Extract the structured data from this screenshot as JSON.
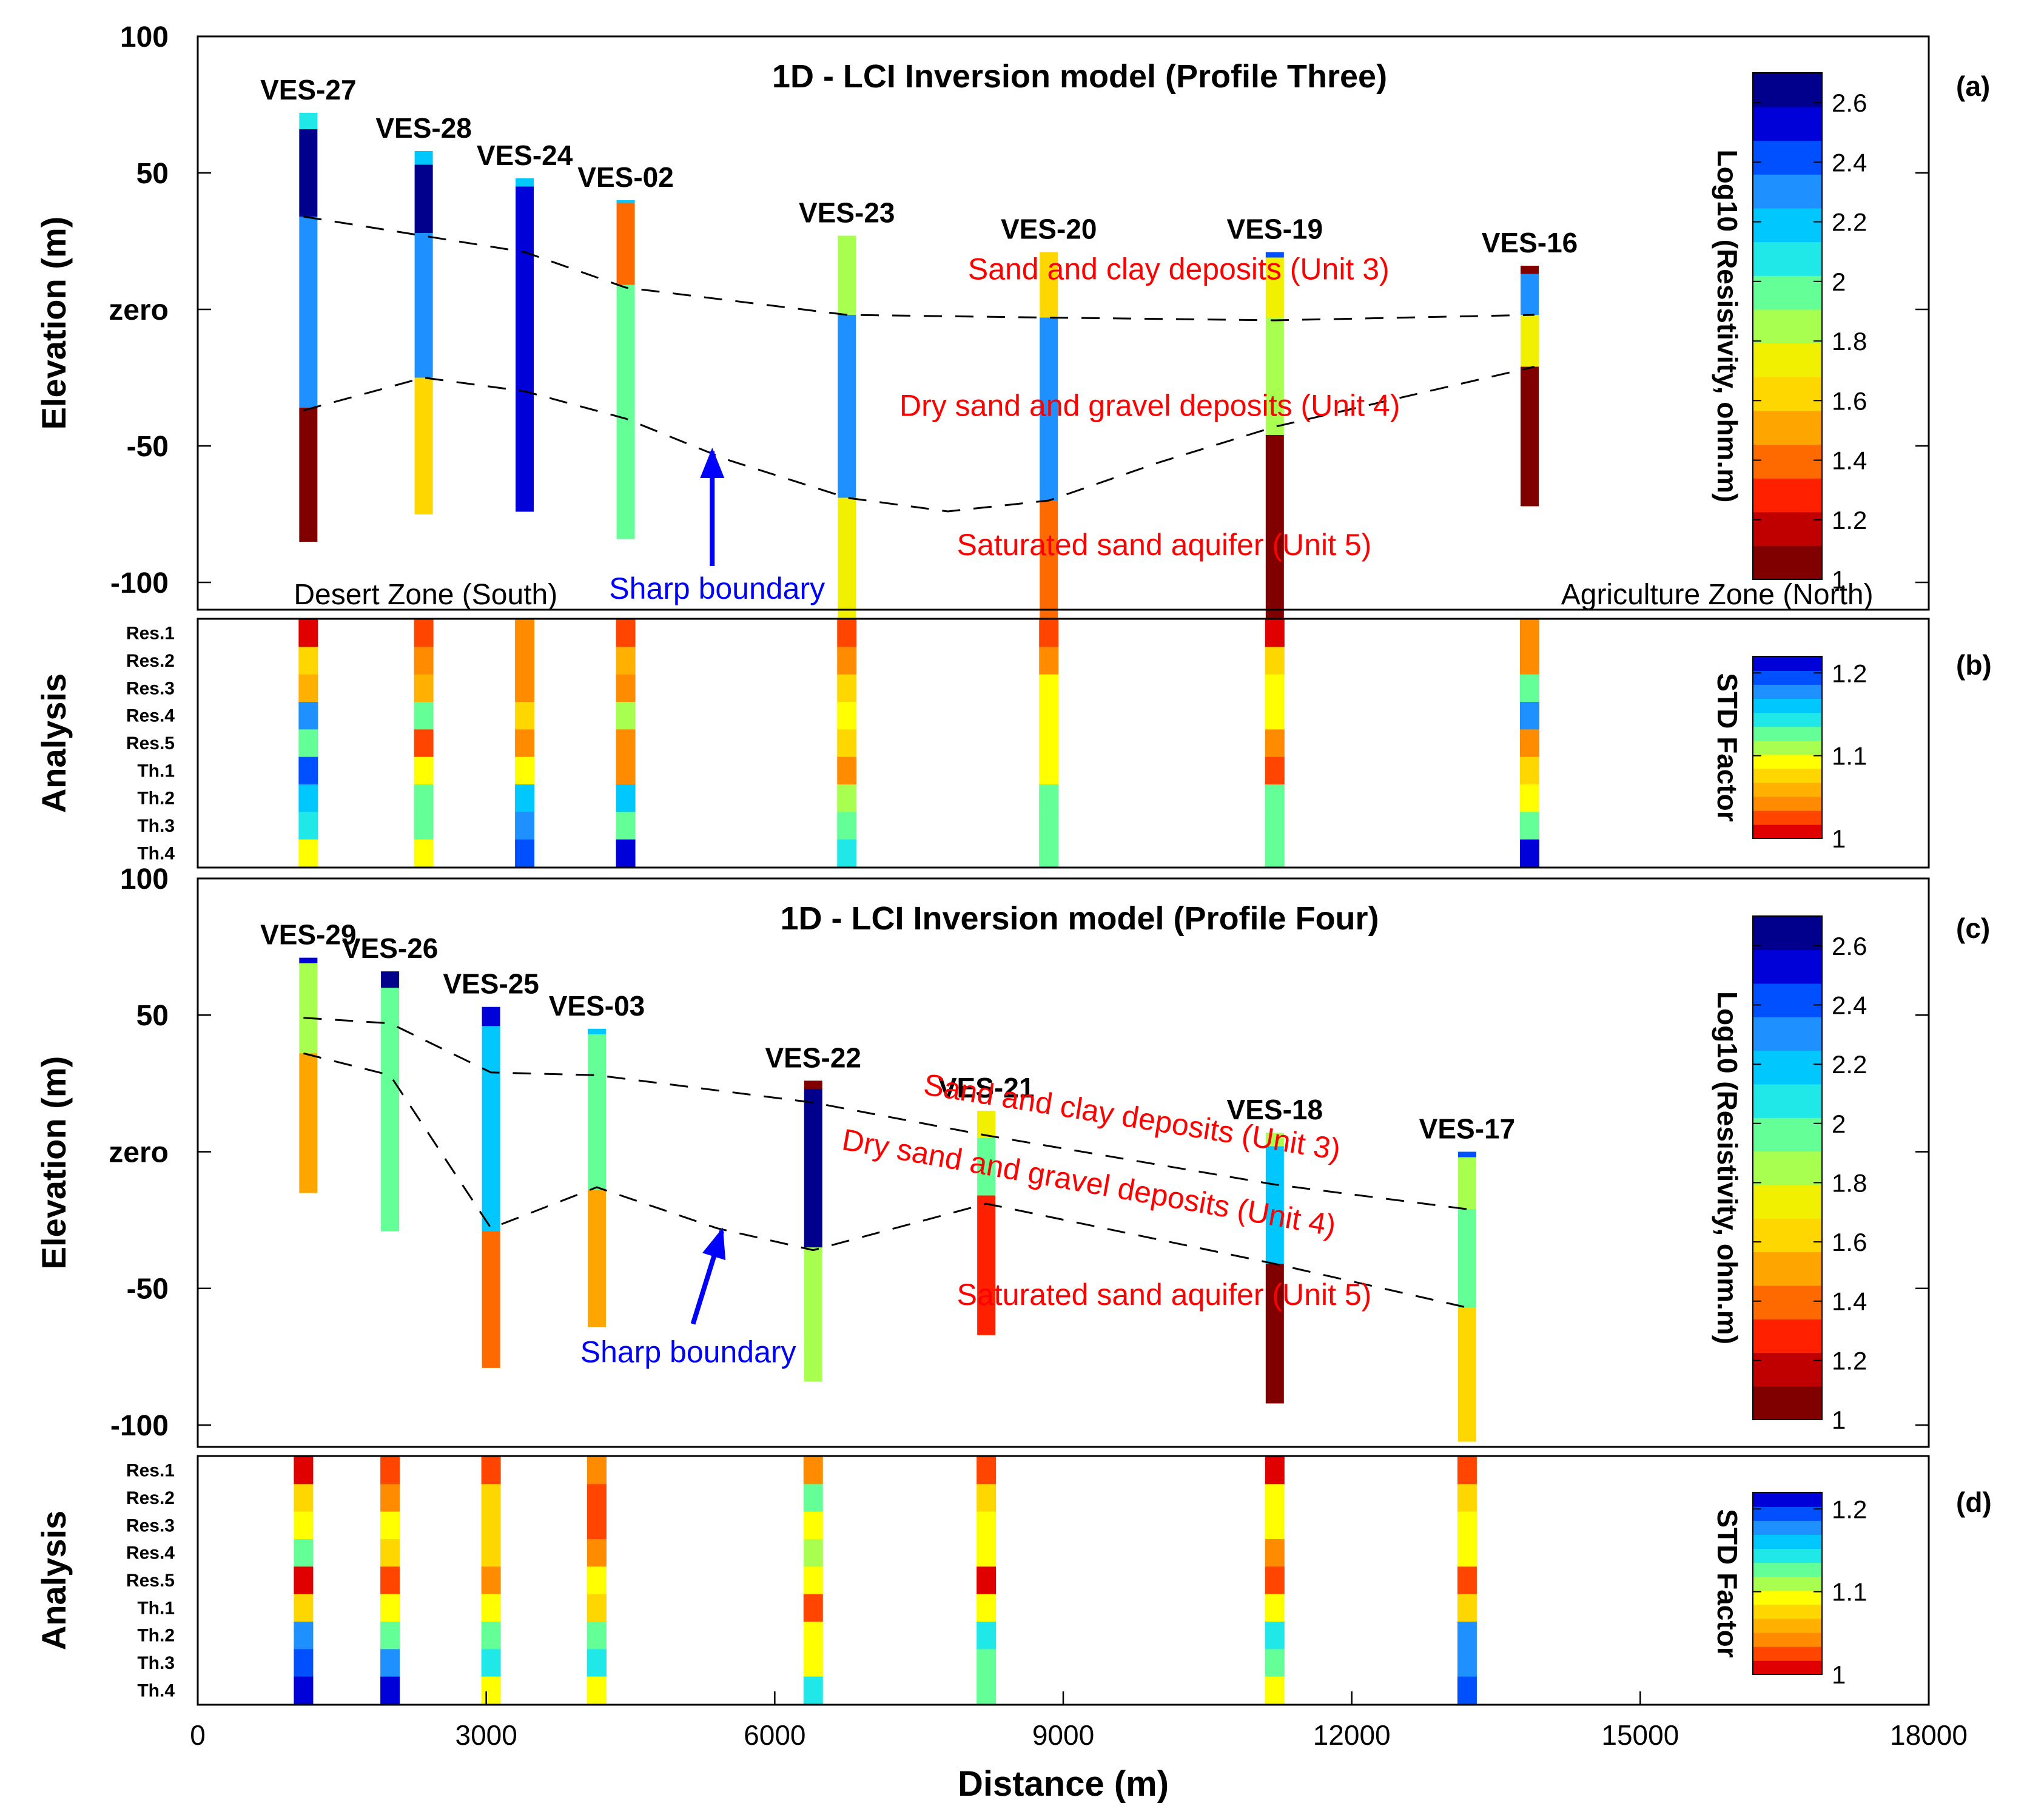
{
  "colors": {
    "jet": [
      "#800000",
      "#c00000",
      "#ff2000",
      "#ff6a00",
      "#ffa500",
      "#ffd700",
      "#f0f000",
      "#a8ff50",
      "#64ff96",
      "#20e8e8",
      "#00c8ff",
      "#1e90ff",
      "#0050ff",
      "#0000d8",
      "#00008c"
    ],
    "std": [
      "#e00000",
      "#ff4500",
      "#ff8c00",
      "#ffb000",
      "#ffd700",
      "#ffff00",
      "#a8ff50",
      "#64ff96",
      "#20e8e8",
      "#00c8ff",
      "#1e90ff",
      "#0050ff",
      "#0000d8"
    ],
    "label_red": "#ff0000",
    "label_blue": "#0000ff",
    "dash": "#000000"
  },
  "chart_data": [
    {
      "panel": "(a)",
      "type": "resistivity-section",
      "title": "1D - LCI Inversion model (Profile Three)",
      "ylabel": "Elevation (m)",
      "xlim": [
        0,
        18000
      ],
      "ylim": [
        -110,
        100
      ],
      "yticks": [
        {
          "v": 100,
          "t": "100"
        },
        {
          "v": 50,
          "t": "50"
        },
        {
          "v": 0,
          "t": "zero"
        },
        {
          "v": -50,
          "t": "-50"
        },
        {
          "v": -100,
          "t": "-100"
        }
      ],
      "colorbar": {
        "label": "Log10 (Resistivity, ohm.m)",
        "range": [
          1,
          2.7
        ],
        "ticks": [
          "2.6",
          "2.4",
          "2.2",
          "2",
          "1.8",
          "1.6",
          "1.4",
          "1.2",
          "1"
        ]
      },
      "soundings": [
        {
          "name": "VES-27",
          "x": 1150,
          "layers": [
            {
              "top": 72,
              "r": 2.1
            },
            {
              "top": 66,
              "r": 2.65
            },
            {
              "top": 34,
              "r": 2.35
            },
            {
              "top": -36,
              "r": 1.05
            }
          ],
          "bottom": -85
        },
        {
          "name": "VES-28",
          "x": 2350,
          "layers": [
            {
              "top": 58,
              "r": 2.2
            },
            {
              "top": 53,
              "r": 2.6
            },
            {
              "top": 28,
              "r": 2.35
            },
            {
              "top": -25,
              "r": 1.65
            }
          ],
          "bottom": -75
        },
        {
          "name": "VES-24",
          "x": 3400,
          "layers": [
            {
              "top": 48,
              "r": 2.2
            },
            {
              "top": 45,
              "r": 2.5
            }
          ],
          "bottom": -74
        },
        {
          "name": "VES-02",
          "x": 4450,
          "layers": [
            {
              "top": 40,
              "r": 2.2
            },
            {
              "top": 39,
              "r": 1.45
            },
            {
              "top": 9,
              "r": 1.95
            }
          ],
          "bottom": -84
        },
        {
          "name": "VES-23",
          "x": 6750,
          "layers": [
            {
              "top": 27,
              "r": 1.8
            },
            {
              "top": -2,
              "r": 2.25
            },
            {
              "top": -69,
              "r": 1.75
            }
          ],
          "bottom": -117
        },
        {
          "name": "VES-20",
          "x": 8850,
          "layers": [
            {
              "top": 21,
              "r": 1.6
            },
            {
              "top": -3,
              "r": 2.35
            },
            {
              "top": -70,
              "r": 1.4
            }
          ],
          "bottom": -118
        },
        {
          "name": "VES-19",
          "x": 11200,
          "layers": [
            {
              "top": 21,
              "r": 2.4
            },
            {
              "top": 19,
              "r": 1.75
            },
            {
              "top": -3,
              "r": 1.9
            },
            {
              "top": -46,
              "r": 1.05
            }
          ],
          "bottom": -118
        },
        {
          "name": "VES-16",
          "x": 13850,
          "layers": [
            {
              "top": 16,
              "r": 1.1
            },
            {
              "top": 13,
              "r": 2.35
            },
            {
              "top": -2,
              "r": 1.75
            },
            {
              "top": -21,
              "r": 1.05
            }
          ],
          "bottom": -72
        }
      ],
      "boundaries": [
        {
          "x": [
            1100,
            3400,
            4450,
            6750,
            8850,
            11200,
            13900
          ],
          "y": [
            34,
            21,
            8,
            -2,
            -3,
            -4,
            -2
          ]
        },
        {
          "x": [
            1100,
            2350,
            3400,
            4450,
            5500,
            6750,
            7800,
            8850,
            10000,
            11200,
            13900
          ],
          "y": [
            -37,
            -25,
            -30,
            -40,
            -55,
            -69,
            -74,
            -70,
            -56,
            -43,
            -21
          ]
        }
      ],
      "annotations": [
        {
          "text": "Sand and clay deposits (Unit 3)",
          "x": 10200,
          "y": 11,
          "color": "red"
        },
        {
          "text": "Dry sand and gravel deposits (Unit 4)",
          "x": 9900,
          "y": -39,
          "color": "red"
        },
        {
          "text": "Saturated sand aquifer (Unit 5)",
          "x": 10050,
          "y": -90,
          "color": "red"
        },
        {
          "text": "Desert Zone (South)",
          "x": 2370,
          "y": -108,
          "color": "black"
        },
        {
          "text": "Sharp boundary",
          "x": 5400,
          "y": -106,
          "color": "blue"
        },
        {
          "text": "Agriculture Zone (North)",
          "x": 15800,
          "y": -108,
          "color": "black"
        }
      ],
      "arrow": {
        "x1": 5350,
        "y1": -94,
        "x2": 5350,
        "y2": -52
      }
    },
    {
      "panel": "(b)",
      "type": "heatmap",
      "ylabel": "Analysis",
      "rows": [
        "Res.1",
        "Res.2",
        "Res.3",
        "Res.4",
        "Res.5",
        "Th.1",
        "Th.2",
        "Th.3",
        "Th.4"
      ],
      "colorbar": {
        "label": "STD Factor",
        "range": [
          1,
          1.22
        ],
        "ticks": [
          "1.2",
          "1.1",
          "1"
        ]
      },
      "columns": [
        {
          "x": 1150,
          "values": [
            1.01,
            1.08,
            1.06,
            1.18,
            1.12,
            1.2,
            1.16,
            1.14,
            1.1
          ]
        },
        {
          "x": 2350,
          "values": [
            1.03,
            1.05,
            1.06,
            1.13,
            1.03,
            1.1,
            1.12,
            1.13,
            1.1
          ]
        },
        {
          "x": 3400,
          "values": [
            1.04,
            1.04,
            1.05,
            1.07,
            1.05,
            1.1,
            1.16,
            1.17,
            1.2
          ]
        },
        {
          "x": 4450,
          "values": [
            1.02,
            1.06,
            1.05,
            1.11,
            1.05,
            1.05,
            1.16,
            1.13,
            1.22
          ]
        },
        {
          "x": 6750,
          "values": [
            1.02,
            1.04,
            1.07,
            1.09,
            1.08,
            1.05,
            1.11,
            1.13,
            1.14
          ]
        },
        {
          "x": 8850,
          "values": [
            1.02,
            1.04,
            1.1,
            1.1,
            1.1,
            1.1,
            1.13,
            1.13,
            1.13
          ]
        },
        {
          "x": 11200,
          "values": [
            1.01,
            1.08,
            1.1,
            1.1,
            1.05,
            1.03,
            1.13,
            1.13,
            1.13
          ]
        },
        {
          "x": 13850,
          "values": [
            1.05,
            1.05,
            1.13,
            1.18,
            1.04,
            1.07,
            1.1,
            1.13,
            1.21
          ]
        }
      ]
    },
    {
      "panel": "(c)",
      "type": "resistivity-section",
      "title": "1D - LCI Inversion model (Profile Four)",
      "ylabel": "Elevation (m)",
      "xlim": [
        0,
        18000
      ],
      "ylim": [
        -108,
        100
      ],
      "yticks": [
        {
          "v": 100,
          "t": "100"
        },
        {
          "v": 50,
          "t": "50"
        },
        {
          "v": 0,
          "t": "zero"
        },
        {
          "v": -50,
          "t": "-50"
        },
        {
          "v": -100,
          "t": "-100"
        }
      ],
      "colorbar": {
        "label": "Log10 (Resistivity, ohm.m)",
        "range": [
          1,
          2.7
        ],
        "ticks": [
          "2.6",
          "2.4",
          "2.2",
          "2",
          "1.8",
          "1.6",
          "1.4",
          "1.2",
          "1"
        ]
      },
      "soundings": [
        {
          "name": "VES-29",
          "x": 1150,
          "layers": [
            {
              "top": 71,
              "r": 2.5
            },
            {
              "top": 69,
              "r": 1.85
            },
            {
              "top": 36,
              "r": 1.55
            }
          ],
          "bottom": -15
        },
        {
          "name": "VES-26",
          "x": 2000,
          "layers": [
            {
              "top": 66,
              "r": 2.65
            },
            {
              "top": 60,
              "r": 1.95
            }
          ],
          "bottom": -29
        },
        {
          "name": "VES-25",
          "x": 3050,
          "layers": [
            {
              "top": 53,
              "r": 2.5
            },
            {
              "top": 46,
              "r": 2.2
            },
            {
              "top": -29,
              "r": 1.4
            }
          ],
          "bottom": -79
        },
        {
          "name": "VES-03",
          "x": 4150,
          "layers": [
            {
              "top": 45,
              "r": 2.2
            },
            {
              "top": 43,
              "r": 2
            },
            {
              "top": -14,
              "r": 1.55
            }
          ],
          "bottom": -64
        },
        {
          "name": "VES-22",
          "x": 6400,
          "layers": [
            {
              "top": 26,
              "r": 1.1
            },
            {
              "top": 23,
              "r": 2.6
            },
            {
              "top": -35,
              "r": 1.9
            }
          ],
          "bottom": -84
        },
        {
          "name": "VES-21",
          "x": 8200,
          "layers": [
            {
              "top": 15,
              "r": 1.75
            },
            {
              "top": 5,
              "r": 1.95
            },
            {
              "top": -16,
              "r": 1.3
            }
          ],
          "bottom": -67
        },
        {
          "name": "VES-18",
          "x": 11200,
          "layers": [
            {
              "top": 7,
              "r": 1.8
            },
            {
              "top": 2,
              "r": 2.2
            },
            {
              "top": -41,
              "r": 1.05
            }
          ],
          "bottom": -92
        },
        {
          "name": "VES-17",
          "x": 13200,
          "layers": [
            {
              "top": 0,
              "r": 2.4
            },
            {
              "top": -2,
              "r": 1.8
            },
            {
              "top": -21,
              "r": 1.95
            },
            {
              "top": -57,
              "r": 1.6
            }
          ],
          "bottom": -106
        }
      ],
      "boundaries": [
        {
          "x": [
            1100,
            2000,
            3050,
            4150,
            6400,
            8200,
            11200,
            13200
          ],
          "y": [
            49,
            47,
            29,
            28,
            18,
            6,
            -12,
            -21
          ]
        },
        {
          "x": [
            1100,
            2000,
            3050,
            4150,
            5400,
            6400,
            8200,
            11200,
            13200
          ],
          "y": [
            36,
            28,
            -28,
            -13,
            -28,
            -36,
            -19,
            -41,
            -57
          ]
        }
      ],
      "annotations": [
        {
          "text": "Sand and clay deposits (Unit 3)",
          "x": 9700,
          "y": 9,
          "color": "red",
          "rotate": 9
        },
        {
          "text": "Dry sand and gravel deposits (Unit 4)",
          "x": 9250,
          "y": -15,
          "color": "red",
          "rotate": 10
        },
        {
          "text": "Saturated sand aquifer (Unit 5)",
          "x": 10050,
          "y": -56,
          "color": "red"
        },
        {
          "text": "Sharp boundary",
          "x": 5100,
          "y": -77,
          "color": "blue"
        }
      ],
      "arrow": {
        "x1": 5150,
        "y1": -63,
        "x2": 5450,
        "y2": -29
      }
    },
    {
      "panel": "(d)",
      "type": "heatmap",
      "ylabel": "Analysis",
      "xlabel": "Distance (m)",
      "xticks": [
        "0",
        "3000",
        "6000",
        "9000",
        "12000",
        "15000",
        "18000"
      ],
      "rows": [
        "Res.1",
        "Res.2",
        "Res.3",
        "Res.4",
        "Res.5",
        "Th.1",
        "Th.2",
        "Th.3",
        "Th.4"
      ],
      "colorbar": {
        "label": "STD Factor",
        "range": [
          1,
          1.22
        ],
        "ticks": [
          "1.2",
          "1.1",
          "1"
        ]
      },
      "columns": [
        {
          "x": 1100,
          "values": [
            1.01,
            1.08,
            1.1,
            1.13,
            1.01,
            1.07,
            1.17,
            1.19,
            1.21
          ]
        },
        {
          "x": 2000,
          "values": [
            1.02,
            1.05,
            1.1,
            1.08,
            1.02,
            1.1,
            1.12,
            1.17,
            1.21
          ]
        },
        {
          "x": 3050,
          "values": [
            1.02,
            1.08,
            1.08,
            1.08,
            1.04,
            1.1,
            1.13,
            1.15,
            1.1
          ]
        },
        {
          "x": 4150,
          "values": [
            1.04,
            1.03,
            1.03,
            1.05,
            1.1,
            1.08,
            1.13,
            1.14,
            1.1
          ]
        },
        {
          "x": 6400,
          "values": [
            1.04,
            1.12,
            1.1,
            1.11,
            1.1,
            1.02,
            1.1,
            1.09,
            1.15
          ]
        },
        {
          "x": 8200,
          "values": [
            1.02,
            1.08,
            1.1,
            1.1,
            1.01,
            1.1,
            1.14,
            1.13,
            1.13
          ]
        },
        {
          "x": 11200,
          "values": [
            1.01,
            1.1,
            1.1,
            1.05,
            1.03,
            1.1,
            1.15,
            1.13,
            1.1
          ]
        },
        {
          "x": 13200,
          "values": [
            1.02,
            1.08,
            1.1,
            1.1,
            1.02,
            1.07,
            1.18,
            1.18,
            1.19
          ]
        }
      ]
    }
  ]
}
